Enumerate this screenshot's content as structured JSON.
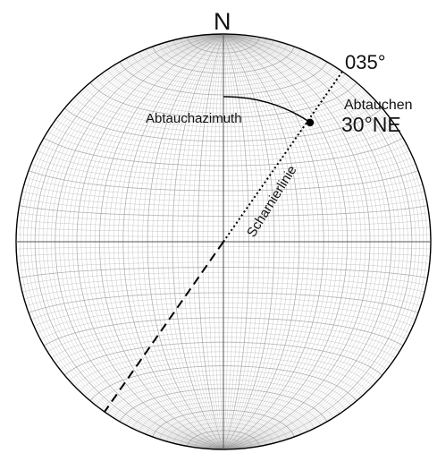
{
  "labels": {
    "north": "N",
    "azimuth_value": "035°",
    "plunge_title": "Abtauchen",
    "plunge_value": "30°NE",
    "azimuth_name": "Abtauchazimuth",
    "hinge_line": "Scharnierlinie"
  },
  "measurement": {
    "azimuth_deg": 35,
    "plunge_deg": 30,
    "plunge_direction": "NE"
  },
  "colors": {
    "primary_line": "#000000",
    "net_line": "#9a9a9a",
    "background": "#ffffff"
  }
}
